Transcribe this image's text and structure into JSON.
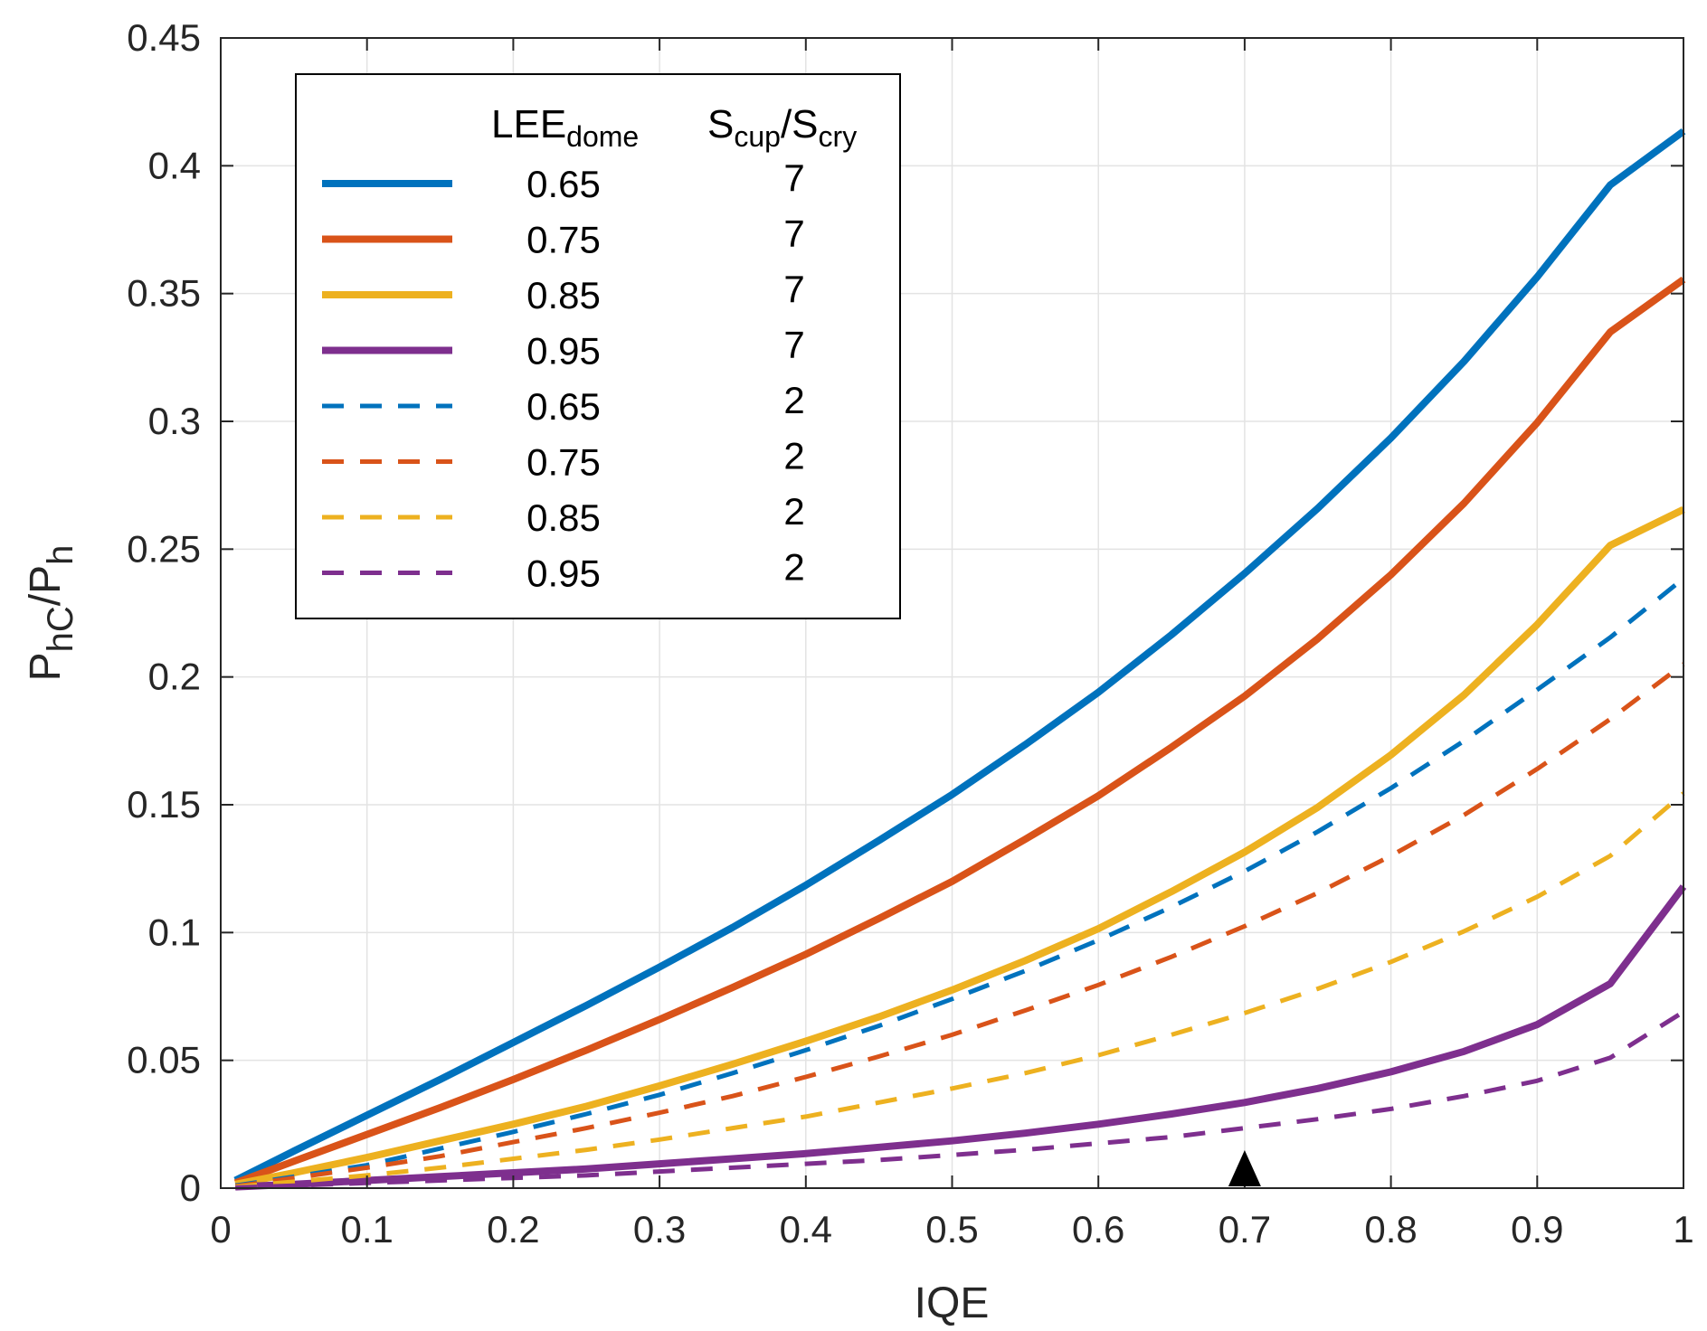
{
  "chart_data": {
    "type": "line",
    "xlabel": "IQE",
    "ylabel": {
      "base": "P",
      "sub1": "hC",
      "sep": "/P",
      "sub2": "h"
    },
    "xlim": [
      0,
      1
    ],
    "ylim": [
      0,
      0.45
    ],
    "grid": true,
    "legend_position": "top-left",
    "x_ticks": [
      "0",
      "0.1",
      "0.2",
      "0.3",
      "0.4",
      "0.5",
      "0.6",
      "0.7",
      "0.8",
      "0.9",
      "1"
    ],
    "y_ticks": [
      "0",
      "0.05",
      "0.1",
      "0.15",
      "0.2",
      "0.25",
      "0.3",
      "0.35",
      "0.4",
      "0.45"
    ],
    "legend_headers": {
      "lee": {
        "base": "LEE",
        "sub": "dome"
      },
      "ratio": {
        "base1": "S",
        "sub1": "cup",
        "sep": "/S",
        "base2": "S",
        "sub2": "cry"
      }
    },
    "marker": {
      "symbol": "triangle",
      "x": 0.7,
      "y": 0
    },
    "x": [
      0.01,
      0.05,
      0.1,
      0.15,
      0.2,
      0.25,
      0.3,
      0.35,
      0.4,
      0.45,
      0.5,
      0.55,
      0.6,
      0.65,
      0.7,
      0.75,
      0.8,
      0.85,
      0.9,
      0.95,
      1.0
    ],
    "series": [
      {
        "lee": "0.65",
        "ratio": "7",
        "color": "#0072BD",
        "style": "solid",
        "values": [
          0.003,
          0.0145,
          0.0285,
          0.0425,
          0.057,
          0.0715,
          0.0865,
          0.102,
          0.1185,
          0.136,
          0.154,
          0.1735,
          0.194,
          0.2165,
          0.2405,
          0.266,
          0.2935,
          0.3235,
          0.3565,
          0.3925,
          0.4135
        ]
      },
      {
        "lee": "0.75",
        "ratio": "7",
        "color": "#D95319",
        "style": "solid",
        "values": [
          0.002,
          0.0105,
          0.021,
          0.0315,
          0.0425,
          0.054,
          0.066,
          0.0785,
          0.0915,
          0.1055,
          0.12,
          0.1365,
          0.1535,
          0.1725,
          0.1925,
          0.215,
          0.24,
          0.268,
          0.2995,
          0.335,
          0.3555
        ]
      },
      {
        "lee": "0.85",
        "ratio": "7",
        "color": "#EDB120",
        "style": "solid",
        "values": [
          0.0015,
          0.006,
          0.012,
          0.0185,
          0.025,
          0.032,
          0.04,
          0.0485,
          0.0575,
          0.067,
          0.0775,
          0.089,
          0.1015,
          0.116,
          0.1315,
          0.149,
          0.1695,
          0.193,
          0.2205,
          0.2515,
          0.2655
        ]
      },
      {
        "lee": "0.95",
        "ratio": "7",
        "color": "#7E2F8E",
        "style": "solid",
        "values": [
          0.0005,
          0.0015,
          0.003,
          0.0045,
          0.006,
          0.0075,
          0.0095,
          0.0115,
          0.0135,
          0.016,
          0.0185,
          0.0215,
          0.025,
          0.029,
          0.0335,
          0.039,
          0.0455,
          0.0535,
          0.064,
          0.08,
          0.118
        ]
      },
      {
        "lee": "0.65",
        "ratio": "2",
        "color": "#0072BD",
        "style": "dashed",
        "values": [
          0.001,
          0.0045,
          0.009,
          0.0155,
          0.022,
          0.029,
          0.0365,
          0.045,
          0.054,
          0.0635,
          0.074,
          0.085,
          0.097,
          0.11,
          0.124,
          0.1395,
          0.1565,
          0.175,
          0.195,
          0.2155,
          0.2385
        ]
      },
      {
        "lee": "0.75",
        "ratio": "2",
        "color": "#D95319",
        "style": "dashed",
        "values": [
          0.0007,
          0.004,
          0.008,
          0.0125,
          0.018,
          0.0235,
          0.0295,
          0.036,
          0.0435,
          0.0515,
          0.06,
          0.0695,
          0.0795,
          0.0905,
          0.1025,
          0.1155,
          0.13,
          0.146,
          0.164,
          0.1835,
          0.205
        ]
      },
      {
        "lee": "0.85",
        "ratio": "2",
        "color": "#EDB120",
        "style": "dashed",
        "values": [
          0.0005,
          0.0025,
          0.005,
          0.008,
          0.0115,
          0.015,
          0.019,
          0.0235,
          0.028,
          0.0335,
          0.039,
          0.045,
          0.052,
          0.06,
          0.0685,
          0.078,
          0.0885,
          0.1005,
          0.114,
          0.13,
          0.1545
        ]
      },
      {
        "lee": "0.95",
        "ratio": "2",
        "color": "#7E2F8E",
        "style": "dashed",
        "values": [
          0.0002,
          0.001,
          0.002,
          0.003,
          0.004,
          0.005,
          0.0065,
          0.008,
          0.0095,
          0.011,
          0.013,
          0.015,
          0.0175,
          0.02,
          0.0235,
          0.027,
          0.031,
          0.036,
          0.042,
          0.051,
          0.069
        ]
      }
    ]
  }
}
